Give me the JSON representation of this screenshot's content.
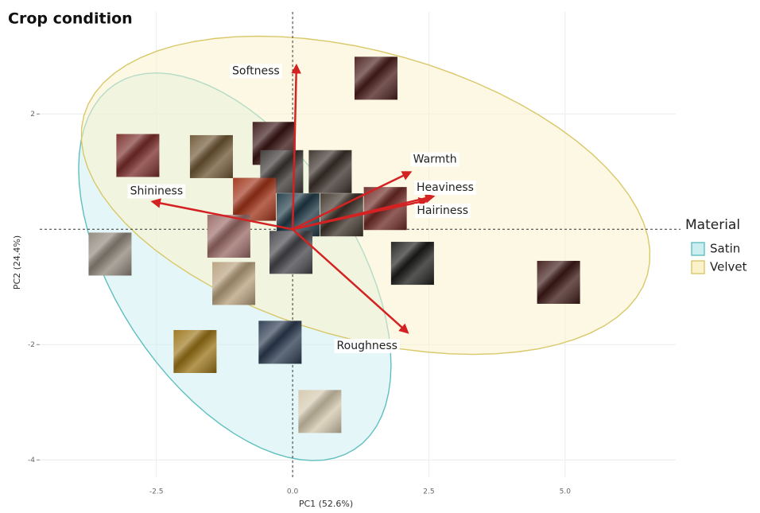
{
  "chart_data": {
    "type": "biplot",
    "title": "Crop condition",
    "xlabel": "PC1 (52.6%)",
    "ylabel": "PC2 (24.4%)",
    "xlim": [
      -4.64,
      7.03
    ],
    "ylim": [
      -4.3,
      3.77
    ],
    "xticks": [
      -2.5,
      {
        "value": 0,
        "label": "0.0"
      },
      2.5,
      {
        "value": 5,
        "label": "5.0"
      }
    ],
    "yticks": [
      -4,
      -2,
      2
    ],
    "grid": true,
    "legend_title": "Material",
    "series": [
      {
        "name": "Satin",
        "color": "#5fbfbf",
        "fill": "#cdeef0",
        "center": [
          -1.06,
          -0.65
        ],
        "axis1": [
          -2.19,
          3.17
        ],
        "axis2": [
          1.85,
          1.12
        ]
      },
      {
        "name": "Velvet",
        "color": "#d9c86a",
        "fill": "#fbf2cc",
        "center": [
          1.34,
          0.59
        ],
        "axis1": [
          5.17,
          -1.38
        ],
        "axis2": [
          -0.71,
          -2.39
        ]
      }
    ],
    "loadings": [
      {
        "name": "Softness",
        "x": 0.07,
        "y": 2.84
      },
      {
        "name": "Shininess",
        "x": -2.57,
        "y": 0.48
      },
      {
        "name": "Warmth",
        "x": 2.16,
        "y": 0.99
      },
      {
        "name": "Heaviness",
        "x": 2.58,
        "y": 0.57
      },
      {
        "name": "Hairiness",
        "x": 2.46,
        "y": 0.5
      },
      {
        "name": "Roughness",
        "x": 2.11,
        "y": -1.79
      }
    ],
    "arrow_color": "#d42222",
    "points": [
      {
        "x": 1.53,
        "y": 2.62,
        "color": "#4a1f1c"
      },
      {
        "x": -2.84,
        "y": 1.28,
        "color": "#7a2e2a"
      },
      {
        "x": -1.49,
        "y": 1.26,
        "color": "#6e5634"
      },
      {
        "x": -0.34,
        "y": 1.49,
        "color": "#3a1515"
      },
      {
        "x": -0.2,
        "y": 1.0,
        "color": "#3a3634"
      },
      {
        "x": 0.69,
        "y": 1.0,
        "color": "#3b302a"
      },
      {
        "x": -0.7,
        "y": 0.52,
        "color": "#a03318"
      },
      {
        "x": 0.1,
        "y": 0.25,
        "color": "#1f3a46"
      },
      {
        "x": 0.9,
        "y": 0.25,
        "color": "#3e342a"
      },
      {
        "x": 1.7,
        "y": 0.36,
        "color": "#6e2a24"
      },
      {
        "x": -1.17,
        "y": -0.12,
        "color": "#9a6a66"
      },
      {
        "x": -3.35,
        "y": -0.43,
        "color": "#8f877b"
      },
      {
        "x": -0.03,
        "y": -0.4,
        "color": "#45454a"
      },
      {
        "x": 2.2,
        "y": -0.59,
        "color": "#1d1d1c"
      },
      {
        "x": 4.88,
        "y": -0.92,
        "color": "#3e1a17"
      },
      {
        "x": -1.08,
        "y": -0.94,
        "color": "#b7a07c"
      },
      {
        "x": -1.79,
        "y": -2.12,
        "color": "#9b7418"
      },
      {
        "x": -0.23,
        "y": -1.96,
        "color": "#2c3b50"
      },
      {
        "x": 0.5,
        "y": -3.16,
        "color": "#d4c8ad"
      }
    ]
  }
}
